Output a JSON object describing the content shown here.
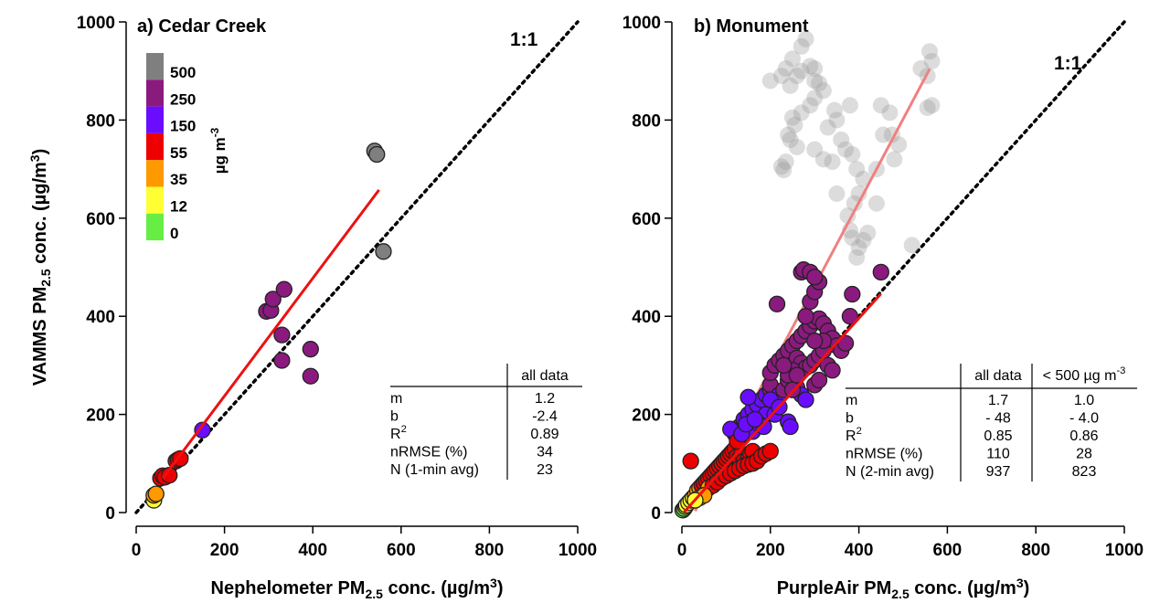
{
  "chart_data": [
    {
      "type": "scatter",
      "title": "a) Cedar Creek",
      "xlabel": "Nephelometer PM2.5 conc. (µg/m3)",
      "ylabel": "VAMMS PM2.5 conc. (µg/m3)",
      "xlim": [
        0,
        1000
      ],
      "ylim": [
        0,
        1000
      ],
      "xticks": [
        "0",
        "200",
        "400",
        "600",
        "800",
        "1000"
      ],
      "yticks": [
        "0",
        "200",
        "400",
        "600",
        "800",
        "1000"
      ],
      "one_to_one_label": "1:1",
      "grid": false,
      "points": [
        [
          40,
          25
        ],
        [
          40,
          35
        ],
        [
          45,
          38
        ],
        [
          55,
          70
        ],
        [
          60,
          75
        ],
        [
          65,
          72
        ],
        [
          75,
          76
        ],
        [
          90,
          105
        ],
        [
          95,
          108
        ],
        [
          100,
          110
        ],
        [
          150,
          168
        ],
        [
          295,
          410
        ],
        [
          305,
          412
        ],
        [
          310,
          435
        ],
        [
          335,
          455
        ],
        [
          330,
          362
        ],
        [
          330,
          310
        ],
        [
          395,
          333
        ],
        [
          395,
          278
        ],
        [
          540,
          737
        ],
        [
          545,
          730
        ],
        [
          560,
          532
        ]
      ],
      "fit_line": {
        "slope": 1.2,
        "intercept": -2.4,
        "x_range": [
          60,
          550
        ],
        "color": "#ee1111"
      },
      "colorbar": {
        "unit_label": "µg m-3",
        "ticks": [
          "500",
          "250",
          "150",
          "55",
          "35",
          "12",
          "0"
        ],
        "colors": [
          "#7f7f7f",
          "#8b1a7f",
          "#6a0dff",
          "#ee0000",
          "#ff9900",
          "#ffff33",
          "#66ee44"
        ]
      },
      "stats_table": {
        "columns": [
          "all data"
        ],
        "rows": [
          {
            "label": "m",
            "values": [
              "1.2"
            ]
          },
          {
            "label": "b",
            "values": [
              "-2.4"
            ]
          },
          {
            "label": "R2",
            "values": [
              "0.89"
            ]
          },
          {
            "label": "nRMSE (%)",
            "values": [
              "34"
            ]
          },
          {
            "label": "N (1-min avg)",
            "values": [
              "23"
            ]
          }
        ]
      }
    },
    {
      "type": "scatter",
      "title": "b) Monument",
      "xlabel": "PurpleAir PM2.5 conc. (µg/m3)",
      "ylabel": "",
      "xlim": [
        0,
        1000
      ],
      "ylim": [
        0,
        1000
      ],
      "xticks": [
        "0",
        "200",
        "400",
        "600",
        "800",
        "1000"
      ],
      "yticks": [
        "0",
        "200",
        "400",
        "600",
        "800",
        "1000"
      ],
      "one_to_one_label": "1:1",
      "grid": false,
      "points_gray": [
        [
          280,
          965
        ],
        [
          270,
          950
        ],
        [
          250,
          925
        ],
        [
          290,
          910
        ],
        [
          300,
          905
        ],
        [
          270,
          900
        ],
        [
          260,
          890
        ],
        [
          235,
          905
        ],
        [
          225,
          890
        ],
        [
          200,
          880
        ],
        [
          245,
          870
        ],
        [
          310,
          875
        ],
        [
          320,
          860
        ],
        [
          300,
          845
        ],
        [
          290,
          830
        ],
        [
          270,
          815
        ],
        [
          250,
          805
        ],
        [
          255,
          790
        ],
        [
          240,
          770
        ],
        [
          245,
          760
        ],
        [
          260,
          745
        ],
        [
          235,
          715
        ],
        [
          225,
          705
        ],
        [
          230,
          698
        ],
        [
          300,
          740
        ],
        [
          320,
          720
        ],
        [
          340,
          715
        ],
        [
          350,
          800
        ],
        [
          330,
          785
        ],
        [
          345,
          820
        ],
        [
          360,
          760
        ],
        [
          370,
          740
        ],
        [
          385,
          730
        ],
        [
          395,
          700
        ],
        [
          410,
          680
        ],
        [
          400,
          650
        ],
        [
          390,
          630
        ],
        [
          375,
          605
        ],
        [
          380,
          575
        ],
        [
          385,
          560
        ],
        [
          400,
          540
        ],
        [
          410,
          555
        ],
        [
          420,
          570
        ],
        [
          395,
          520
        ],
        [
          440,
          700
        ],
        [
          455,
          770
        ],
        [
          450,
          830
        ],
        [
          470,
          815
        ],
        [
          475,
          770
        ],
        [
          490,
          750
        ],
        [
          520,
          545
        ],
        [
          540,
          905
        ],
        [
          560,
          940
        ],
        [
          565,
          920
        ],
        [
          555,
          890
        ],
        [
          565,
          830
        ],
        [
          555,
          825
        ],
        [
          350,
          650
        ],
        [
          380,
          830
        ],
        [
          440,
          630
        ],
        [
          480,
          720
        ],
        [
          300,
          880
        ]
      ],
      "points_colored": [
        [
          2,
          5
        ],
        [
          5,
          8
        ],
        [
          8,
          12
        ],
        [
          10,
          15
        ],
        [
          15,
          20
        ],
        [
          20,
          25
        ],
        [
          25,
          30
        ],
        [
          30,
          35
        ],
        [
          20,
          105
        ],
        [
          35,
          45
        ],
        [
          40,
          50
        ],
        [
          45,
          55
        ],
        [
          50,
          60
        ],
        [
          55,
          65
        ],
        [
          60,
          70
        ],
        [
          65,
          75
        ],
        [
          70,
          80
        ],
        [
          75,
          85
        ],
        [
          80,
          90
        ],
        [
          85,
          95
        ],
        [
          90,
          100
        ],
        [
          95,
          105
        ],
        [
          100,
          110
        ],
        [
          105,
          115
        ],
        [
          110,
          120
        ],
        [
          115,
          125
        ],
        [
          120,
          130
        ],
        [
          125,
          115
        ],
        [
          130,
          110
        ],
        [
          135,
          120
        ],
        [
          140,
          105
        ],
        [
          145,
          100
        ],
        [
          150,
          110
        ],
        [
          155,
          120
        ],
        [
          160,
          125
        ],
        [
          60,
          50
        ],
        [
          70,
          55
        ],
        [
          80,
          62
        ],
        [
          90,
          70
        ],
        [
          100,
          75
        ],
        [
          110,
          80
        ],
        [
          120,
          85
        ],
        [
          130,
          90
        ],
        [
          140,
          95
        ],
        [
          150,
          98
        ],
        [
          160,
          100
        ],
        [
          170,
          105
        ],
        [
          180,
          115
        ],
        [
          190,
          120
        ],
        [
          200,
          125
        ],
        [
          40,
          30
        ],
        [
          50,
          35
        ],
        [
          30,
          25
        ],
        [
          120,
          160
        ],
        [
          130,
          175
        ],
        [
          140,
          190
        ],
        [
          150,
          200
        ],
        [
          160,
          210
        ],
        [
          170,
          220
        ],
        [
          180,
          230
        ],
        [
          190,
          240
        ],
        [
          200,
          250
        ],
        [
          150,
          235
        ],
        [
          200,
          260
        ],
        [
          220,
          240
        ],
        [
          230,
          250
        ],
        [
          240,
          270
        ],
        [
          260,
          255
        ],
        [
          270,
          240
        ],
        [
          280,
          230
        ],
        [
          240,
          185
        ],
        [
          245,
          175
        ],
        [
          190,
          200
        ],
        [
          200,
          230
        ],
        [
          210,
          200
        ],
        [
          220,
          215
        ],
        [
          160,
          165
        ],
        [
          175,
          180
        ],
        [
          185,
          175
        ],
        [
          110,
          170
        ],
        [
          125,
          145
        ],
        [
          135,
          160
        ],
        [
          145,
          180
        ],
        [
          165,
          190
        ],
        [
          200,
          285
        ],
        [
          210,
          300
        ],
        [
          220,
          310
        ],
        [
          230,
          320
        ],
        [
          240,
          330
        ],
        [
          250,
          340
        ],
        [
          260,
          350
        ],
        [
          270,
          360
        ],
        [
          280,
          370
        ],
        [
          290,
          380
        ],
        [
          300,
          390
        ],
        [
          310,
          395
        ],
        [
          320,
          385
        ],
        [
          330,
          370
        ],
        [
          340,
          355
        ],
        [
          350,
          340
        ],
        [
          360,
          330
        ],
        [
          370,
          345
        ],
        [
          280,
          400
        ],
        [
          290,
          430
        ],
        [
          300,
          450
        ],
        [
          310,
          470
        ],
        [
          270,
          490
        ],
        [
          275,
          495
        ],
        [
          290,
          490
        ],
        [
          300,
          480
        ],
        [
          215,
          425
        ],
        [
          380,
          400
        ],
        [
          385,
          445
        ],
        [
          450,
          490
        ],
        [
          260,
          315
        ],
        [
          270,
          305
        ],
        [
          280,
          295
        ],
        [
          290,
          300
        ],
        [
          300,
          310
        ],
        [
          310,
          320
        ],
        [
          320,
          330
        ],
        [
          330,
          300
        ],
        [
          340,
          290
        ],
        [
          250,
          290
        ],
        [
          240,
          280
        ],
        [
          230,
          300
        ],
        [
          300,
          260
        ],
        [
          310,
          270
        ],
        [
          320,
          350
        ],
        [
          300,
          350
        ],
        [
          250,
          250
        ],
        [
          260,
          280
        ]
      ],
      "fit_line_all": {
        "slope": 1.7,
        "intercept": -48,
        "x_range": [
          30,
          560
        ],
        "color": "#f08080"
      },
      "fit_line_sub500": {
        "slope": 1.0,
        "intercept": -4.0,
        "x_range": [
          5,
          450
        ],
        "color": "#ee1111"
      },
      "stats_table": {
        "columns": [
          "all data",
          "< 500 µg m-3"
        ],
        "rows": [
          {
            "label": "m",
            "values": [
              "1.7",
              "1.0"
            ]
          },
          {
            "label": "b",
            "values": [
              "- 48",
              "- 4.0"
            ]
          },
          {
            "label": "R2",
            "values": [
              "0.85",
              "0.86"
            ]
          },
          {
            "label": "nRMSE (%)",
            "values": [
              "110",
              "28"
            ]
          },
          {
            "label": "N (2-min avg)",
            "values": [
              "937",
              "823"
            ]
          }
        ]
      }
    }
  ]
}
